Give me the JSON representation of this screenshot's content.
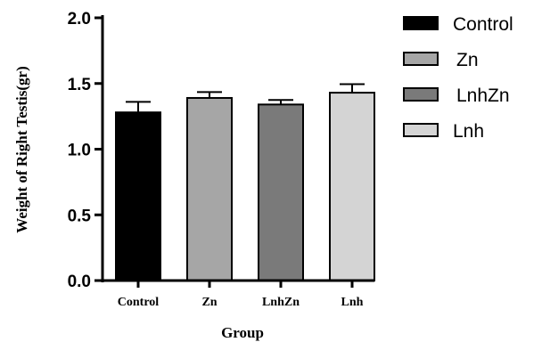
{
  "chart_data": {
    "type": "bar",
    "categories": [
      "Control",
      "Zn",
      "LnhZn",
      "Lnh"
    ],
    "values": [
      1.28,
      1.39,
      1.34,
      1.43
    ],
    "errors": [
      0.08,
      0.045,
      0.035,
      0.065
    ],
    "colors": [
      "#000000",
      "#a6a6a6",
      "#7a7a7a",
      "#d4d4d4"
    ],
    "ylim": [
      0,
      2.0
    ],
    "yticks": [
      "0.0",
      "0.5",
      "1.0",
      "1.5",
      "2.0"
    ],
    "xlabel": "Group",
    "ylabel": "Weight of Right Testis(gr)",
    "legend": [
      "Control",
      "Zn",
      "LnhZn",
      "Lnh"
    ],
    "legend_position": "right"
  }
}
